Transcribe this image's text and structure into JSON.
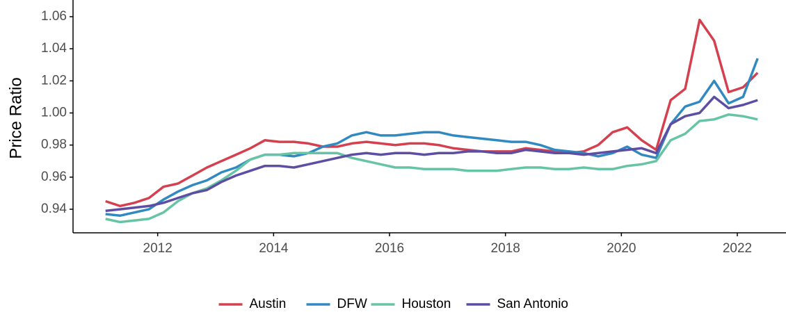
{
  "chart_data": {
    "type": "line",
    "ylabel": "Price Ratio",
    "x": [
      2011.1,
      2011.35,
      2011.6,
      2011.85,
      2012.1,
      2012.35,
      2012.6,
      2012.85,
      2013.1,
      2013.35,
      2013.6,
      2013.85,
      2014.1,
      2014.35,
      2014.6,
      2014.85,
      2015.1,
      2015.35,
      2015.6,
      2015.85,
      2016.1,
      2016.35,
      2016.6,
      2016.85,
      2017.1,
      2017.35,
      2017.6,
      2017.85,
      2018.1,
      2018.35,
      2018.6,
      2018.85,
      2019.1,
      2019.35,
      2019.6,
      2019.85,
      2020.1,
      2020.35,
      2020.6,
      2020.85,
      2021.1,
      2021.35,
      2021.6,
      2021.85,
      2022.1,
      2022.35
    ],
    "series": [
      {
        "name": "Austin",
        "color": "#d5404f",
        "values": [
          0.945,
          0.942,
          0.944,
          0.947,
          0.954,
          0.956,
          0.961,
          0.966,
          0.97,
          0.974,
          0.978,
          0.983,
          0.982,
          0.982,
          0.981,
          0.979,
          0.979,
          0.981,
          0.982,
          0.981,
          0.98,
          0.981,
          0.981,
          0.98,
          0.978,
          0.977,
          0.976,
          0.976,
          0.976,
          0.978,
          0.977,
          0.976,
          0.975,
          0.976,
          0.98,
          0.988,
          0.991,
          0.983,
          0.977,
          1.008,
          1.015,
          1.058,
          1.045,
          1.013,
          1.016,
          1.025
        ]
      },
      {
        "name": "DFW",
        "color": "#3189c2",
        "values": [
          0.937,
          0.936,
          0.938,
          0.94,
          0.946,
          0.951,
          0.955,
          0.958,
          0.963,
          0.966,
          0.971,
          0.974,
          0.974,
          0.973,
          0.975,
          0.979,
          0.981,
          0.986,
          0.988,
          0.986,
          0.986,
          0.987,
          0.988,
          0.988,
          0.986,
          0.985,
          0.984,
          0.983,
          0.982,
          0.982,
          0.98,
          0.977,
          0.976,
          0.975,
          0.973,
          0.975,
          0.979,
          0.974,
          0.972,
          0.993,
          1.004,
          1.007,
          1.02,
          1.006,
          1.01,
          1.034
        ]
      },
      {
        "name": "Houston",
        "color": "#66c4a4",
        "values": [
          0.934,
          0.932,
          0.933,
          0.934,
          0.938,
          0.945,
          0.95,
          0.953,
          0.958,
          0.964,
          0.971,
          0.974,
          0.974,
          0.975,
          0.975,
          0.975,
          0.975,
          0.972,
          0.97,
          0.968,
          0.966,
          0.966,
          0.965,
          0.965,
          0.965,
          0.964,
          0.964,
          0.964,
          0.965,
          0.966,
          0.966,
          0.965,
          0.965,
          0.966,
          0.965,
          0.965,
          0.967,
          0.968,
          0.97,
          0.983,
          0.987,
          0.995,
          0.996,
          0.999,
          0.998,
          0.996
        ]
      },
      {
        "name": "San Antonio",
        "color": "#5e4ea3",
        "values": [
          0.939,
          0.94,
          0.941,
          0.942,
          0.944,
          0.947,
          0.95,
          0.952,
          0.957,
          0.961,
          0.964,
          0.967,
          0.967,
          0.966,
          0.968,
          0.97,
          0.972,
          0.974,
          0.975,
          0.974,
          0.975,
          0.975,
          0.974,
          0.975,
          0.975,
          0.976,
          0.976,
          0.975,
          0.975,
          0.977,
          0.976,
          0.975,
          0.975,
          0.974,
          0.975,
          0.976,
          0.977,
          0.978,
          0.975,
          0.993,
          0.998,
          1.0,
          1.01,
          1.003,
          1.005,
          1.008
        ]
      }
    ],
    "xlim": [
      2010.54,
      2022.84
    ],
    "xticks": [
      2012,
      2014,
      2016,
      2018,
      2020,
      2022
    ],
    "ylim": [
      0.9253,
      1.0704
    ],
    "yticks": [
      {
        "value": 0.94,
        "label": "0.94"
      },
      {
        "value": 0.96,
        "label": "0.96"
      },
      {
        "value": 0.98,
        "label": "0.98"
      },
      {
        "value": 1.0,
        "label": "1.00"
      },
      {
        "value": 1.02,
        "label": "1.02"
      },
      {
        "value": 1.04,
        "label": "1.04"
      },
      {
        "value": 1.06,
        "label": "1.06"
      }
    ],
    "grid": false,
    "legend": "bottom"
  }
}
